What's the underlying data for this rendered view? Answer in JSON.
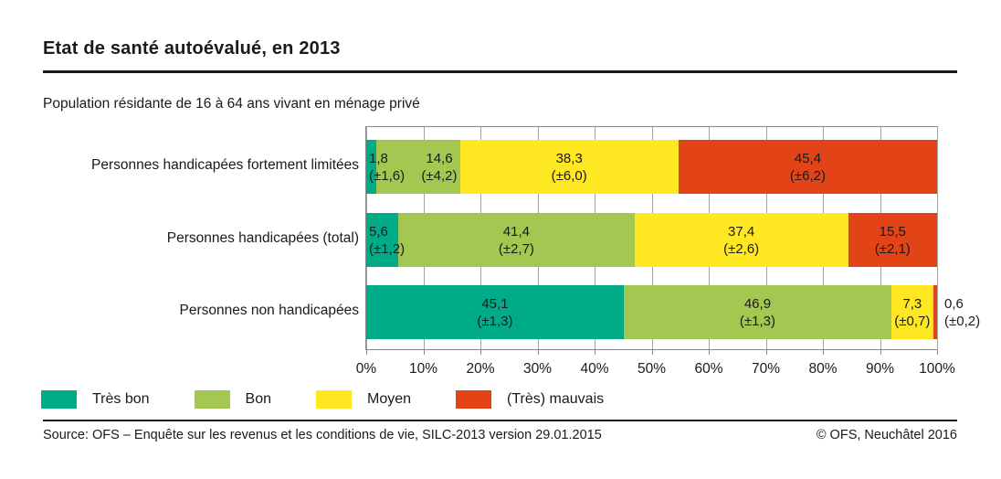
{
  "title": "Etat de santé autoévalué, en 2013",
  "subtitle": "Population résidante de 16 à 64 ans vivant en ménage privé",
  "footer": {
    "source": "Source: OFS – Enquête sur les revenus et les conditions de vie, SILC-2013 version 29.01.2015",
    "copyright": "© OFS, Neuchâtel 2016"
  },
  "colors": {
    "tres_bon": "#00AB87",
    "bon": "#A4C751",
    "moyen": "#FFE821",
    "tres_mauvais": "#E34417",
    "grid": "#A3A3A3",
    "plot_border": "#8A8A8A",
    "rule": "#1A1A1A"
  },
  "legend": [
    {
      "label": "Très bon",
      "color": "#00AB87"
    },
    {
      "label": "Bon",
      "color": "#A4C751"
    },
    {
      "label": "Moyen",
      "color": "#FFE821"
    },
    {
      "label": "(Très) mauvais",
      "color": "#E34417"
    }
  ],
  "chart_data": {
    "type": "bar",
    "subtype": "horizontal-stacked",
    "unit": "%",
    "xlim": [
      0,
      100
    ],
    "x_ticks": [
      "0%",
      "10%",
      "20%",
      "30%",
      "40%",
      "50%",
      "60%",
      "70%",
      "80%",
      "90%",
      "100%"
    ],
    "grid": "vertical",
    "legend_position": "bottom",
    "series_names": [
      "Très bon",
      "Bon",
      "Moyen",
      "(Très) mauvais"
    ],
    "rows": [
      {
        "label": "Personnes handicapées fortement limitées",
        "segments": [
          {
            "series": "Très bon",
            "value": 1.8,
            "ci": 1.6,
            "value_label": "1,8",
            "ci_label": "(±1,6)",
            "label_pos": "start"
          },
          {
            "series": "Bon",
            "value": 14.6,
            "ci": 4.2,
            "value_label": "14,6",
            "ci_label": "(±4,2)",
            "label_pos": "end"
          },
          {
            "series": "Moyen",
            "value": 38.3,
            "ci": 6.0,
            "value_label": "38,3",
            "ci_label": "(±6,0)",
            "label_pos": "center"
          },
          {
            "series": "(Très) mauvais",
            "value": 45.4,
            "ci": 6.2,
            "value_label": "45,4",
            "ci_label": "(±6,2)",
            "label_pos": "center"
          }
        ]
      },
      {
        "label": "Personnes handicapées (total)",
        "segments": [
          {
            "series": "Très bon",
            "value": 5.6,
            "ci": 1.2,
            "value_label": "5,6",
            "ci_label": "(±1,2)",
            "label_pos": "start"
          },
          {
            "series": "Bon",
            "value": 41.4,
            "ci": 2.7,
            "value_label": "41,4",
            "ci_label": "(±2,7)",
            "label_pos": "center"
          },
          {
            "series": "Moyen",
            "value": 37.4,
            "ci": 2.6,
            "value_label": "37,4",
            "ci_label": "(±2,6)",
            "label_pos": "center"
          },
          {
            "series": "(Très) mauvais",
            "value": 15.5,
            "ci": 2.1,
            "value_label": "15,5",
            "ci_label": "(±2,1)",
            "label_pos": "center"
          }
        ]
      },
      {
        "label": "Personnes non handicapées",
        "segments": [
          {
            "series": "Très bon",
            "value": 45.1,
            "ci": 1.3,
            "value_label": "45,1",
            "ci_label": "(±1,3)",
            "label_pos": "center"
          },
          {
            "series": "Bon",
            "value": 46.9,
            "ci": 1.3,
            "value_label": "46,9",
            "ci_label": "(±1,3)",
            "label_pos": "center"
          },
          {
            "series": "Moyen",
            "value": 7.3,
            "ci": 0.7,
            "value_label": "7,3",
            "ci_label": "(±0,7)",
            "label_pos": "center"
          },
          {
            "series": "(Très) mauvais",
            "value": 0.6,
            "ci": 0.2,
            "value_label": "0,6",
            "ci_label": "(±0,2)",
            "label_pos": "outside"
          }
        ]
      }
    ]
  }
}
